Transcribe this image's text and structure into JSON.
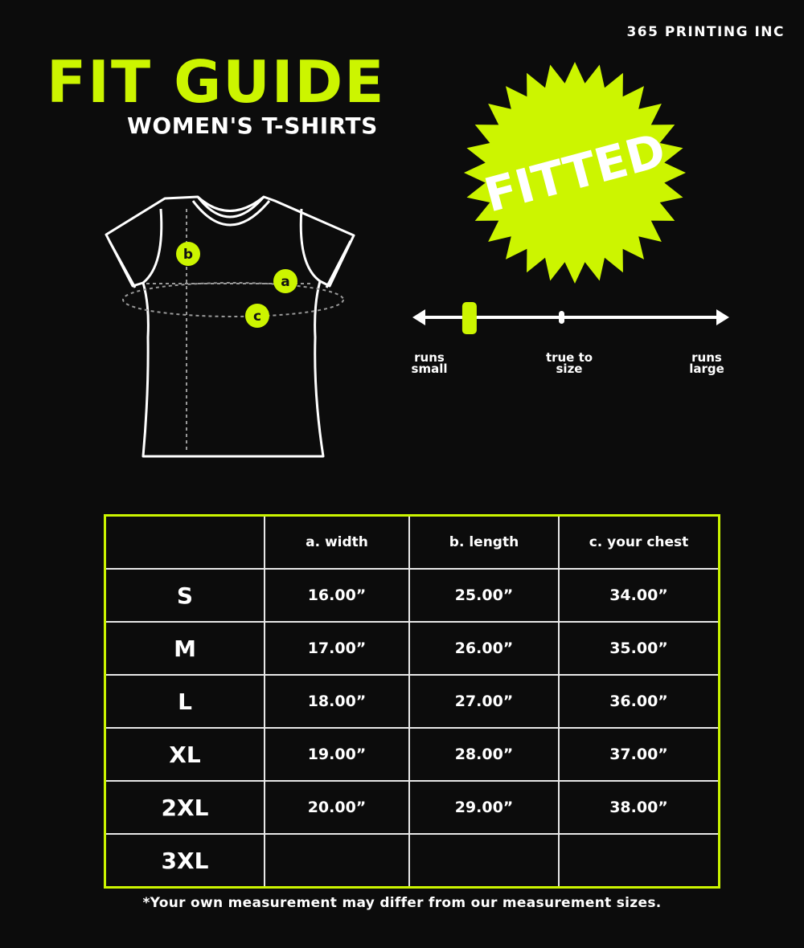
{
  "brand": "365 PRINTING INC",
  "title": "FIT GUIDE",
  "subtitle": "WOMEN'S T-SHIRTS",
  "badge": {
    "text": "FITTED",
    "color": "#ccf500"
  },
  "shirt_labels": {
    "a": "a",
    "b": "b",
    "c": "c"
  },
  "fit_scale": {
    "left": "runs small",
    "middle": "true to size",
    "right": "runs large",
    "level_fraction_from_left": 0.18
  },
  "table": {
    "headers": [
      "",
      "a. width",
      "b. length",
      "c. your chest"
    ],
    "rows": [
      [
        "S",
        "16.00”",
        "25.00”",
        "34.00”"
      ],
      [
        "M",
        "17.00”",
        "26.00”",
        "35.00”"
      ],
      [
        "L",
        "18.00”",
        "27.00”",
        "36.00”"
      ],
      [
        "XL",
        "19.00”",
        "28.00”",
        "37.00”"
      ],
      [
        "2XL",
        "20.00”",
        "29.00”",
        "38.00”"
      ],
      [
        "3XL",
        "",
        "",
        ""
      ]
    ]
  },
  "note": "*Your own measurement may differ from our measurement sizes.",
  "accent": "#ccf500"
}
